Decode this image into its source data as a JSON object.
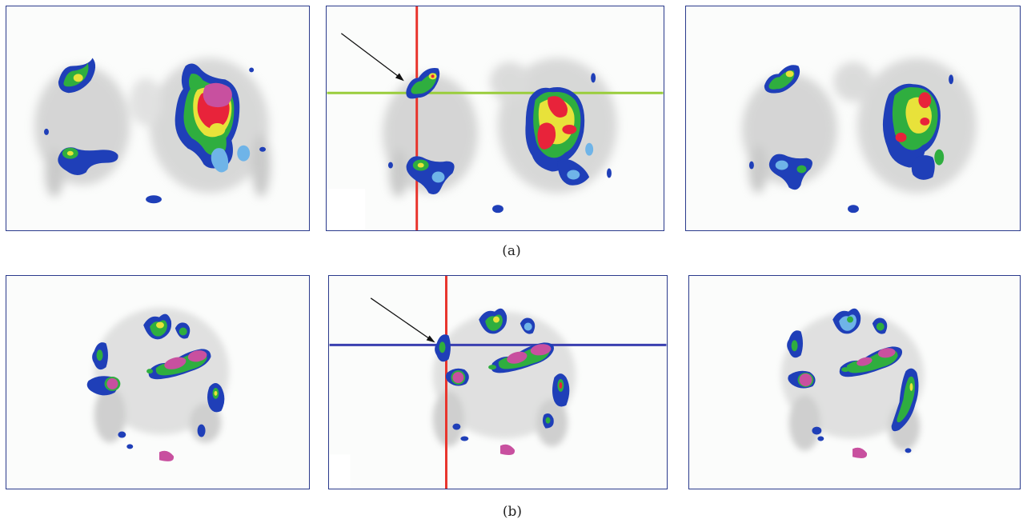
{
  "captions": {
    "row_a": "(a)",
    "row_b": "(b)"
  },
  "colors": {
    "frame": "#2a3a8c",
    "crosshair_vertical": "#e8342c",
    "crosshair_horizontal_a": "#9acd3c",
    "crosshair_horizontal_b": "#3a3fb0",
    "scale_blue": "#1f3fb8",
    "scale_light_blue": "#6fb4e8",
    "scale_green": "#2fae3f",
    "scale_yellow": "#e8e23a",
    "scale_red": "#e8233a",
    "scale_magenta": "#c8509f",
    "background_gray": "#b8b8b8"
  }
}
